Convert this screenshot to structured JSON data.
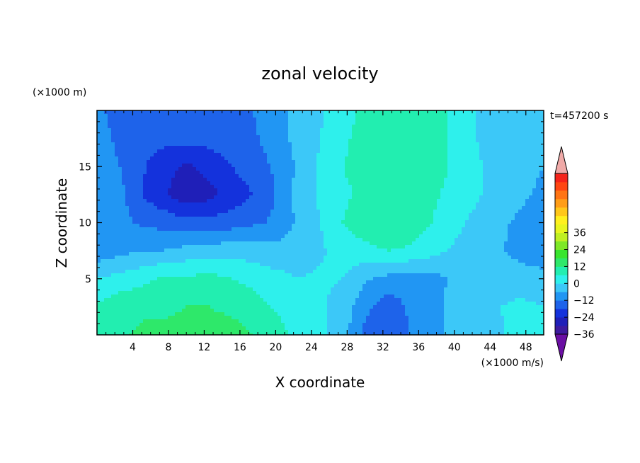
{
  "chart_data": {
    "type": "heatmap",
    "title": "zonal velocity",
    "xlabel": "X coordinate",
    "ylabel": "Z coordinate",
    "x_unit_label": "(×1000 m/s)",
    "y_unit_label": "(×1000 m)",
    "time_label": "t=457200 s",
    "xlim": [
      0,
      50
    ],
    "ylim": [
      0,
      20
    ],
    "x_ticks": [
      "4",
      "8",
      "12",
      "16",
      "20",
      "24",
      "28",
      "32",
      "36",
      "40",
      "44",
      "48"
    ],
    "y_ticks": [
      "5",
      "10",
      "15"
    ],
    "x_tick_values": [
      4,
      8,
      12,
      16,
      20,
      24,
      28,
      32,
      36,
      40,
      44,
      48
    ],
    "y_tick_values": [
      5,
      10,
      15
    ],
    "colorbar": {
      "min": -42,
      "max": 42,
      "step": 6,
      "extend": "both",
      "tick_values": [
        36,
        24,
        12,
        0,
        -12,
        -24,
        -36
      ],
      "tick_labels": [
        "36",
        "24",
        "12",
        "0",
        "−12",
        "−24",
        "−36"
      ],
      "colors": [
        "#6a0fa3",
        "#3d1a9e",
        "#1f1fb8",
        "#1432dc",
        "#1e63ea",
        "#2196f3",
        "#3cc8f8",
        "#2ef0ec",
        "#22eeb0",
        "#2ee86a",
        "#38e52e",
        "#7ee827",
        "#bfef23",
        "#e8f51f",
        "#fff01e",
        "#ffc71a",
        "#ff9d17",
        "#ff7414",
        "#ff4612",
        "#f5231a",
        "#f0aaa8"
      ]
    },
    "grid": false,
    "legend": "colorbar-right",
    "z_grid": {
      "x": [
        0,
        2.5,
        5,
        7.5,
        10,
        12.5,
        15,
        17.5,
        20,
        22.5,
        25,
        27.5,
        30,
        32.5,
        35,
        37.5,
        40,
        42.5,
        45,
        47.5,
        50
      ],
      "z": [
        0,
        2.5,
        5,
        7.5,
        10,
        12.5,
        15,
        17.5,
        20
      ],
      "values": [
        [
          7,
          11,
          13,
          13,
          14,
          14,
          14,
          12,
          9,
          4,
          1,
          -3,
          -14,
          -17,
          -12,
          -10,
          -3,
          0,
          -1,
          3,
          2
        ],
        [
          7,
          10,
          11,
          11,
          12,
          12,
          11,
          9,
          5,
          3,
          1,
          -3,
          -10,
          -16,
          -11,
          -8,
          -4,
          -1,
          0,
          1,
          0
        ],
        [
          0,
          2,
          4,
          7,
          7,
          8,
          6,
          4,
          2,
          0,
          1,
          0,
          -5,
          -8,
          -9,
          -8,
          -5,
          -3,
          -3,
          -2,
          -3
        ],
        [
          -10,
          -8,
          -6,
          -6,
          -4,
          -3,
          -2,
          -3,
          -4,
          -3,
          -1,
          3,
          4,
          6,
          5,
          2,
          -1,
          -4,
          -5,
          -9,
          -12
        ],
        [
          -9,
          -10,
          -13,
          -14,
          -16,
          -16,
          -15,
          -13,
          -11,
          -5,
          0,
          6,
          10,
          12,
          10,
          6,
          2,
          -2,
          -5,
          -7,
          -10
        ],
        [
          -8,
          -10,
          -18,
          -23,
          -28,
          -26,
          -22,
          -18,
          -12,
          -4,
          1,
          5,
          7,
          10,
          10,
          7,
          4,
          1,
          -3,
          -5,
          -7
        ],
        [
          -7,
          -12,
          -17,
          -22,
          -25,
          -22,
          -18,
          -15,
          -11,
          -5,
          1,
          6,
          8,
          11,
          11,
          9,
          5,
          1,
          -3,
          -5,
          -6
        ],
        [
          -8,
          -14,
          -16,
          -16,
          -16,
          -16,
          -15,
          -13,
          -9,
          -4,
          0,
          5,
          8,
          10,
          10,
          8,
          5,
          0,
          -3,
          -5,
          -6
        ],
        [
          -10,
          -16,
          -18,
          -16,
          -15,
          -15,
          -14,
          -12,
          -8,
          -4,
          -1,
          4,
          7,
          9,
          9,
          8,
          5,
          0,
          -3,
          -5,
          -6
        ]
      ]
    }
  }
}
